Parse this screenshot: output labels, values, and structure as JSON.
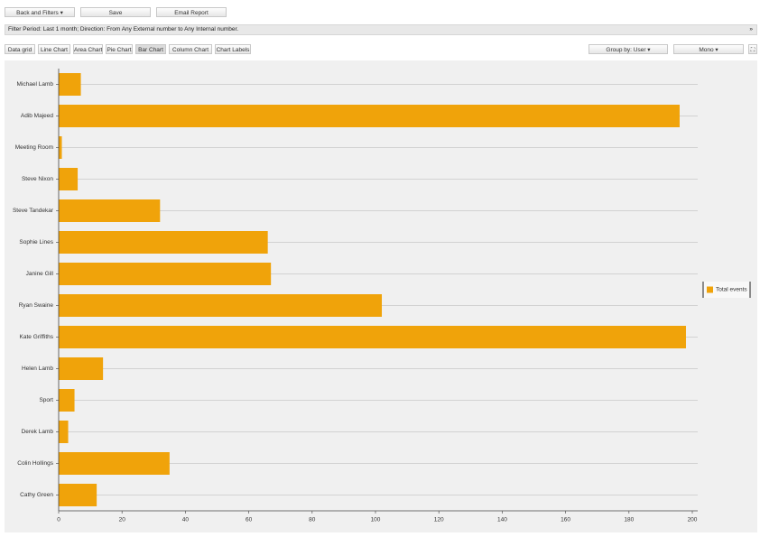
{
  "toolbar": {
    "buttons": [
      "Back and Filters",
      "Save",
      "Email Report"
    ]
  },
  "filter": {
    "text": "Filter Period: Last 1 month; Direction: From Any External number to Any Internal number.",
    "close": "»"
  },
  "chart_buttons": [
    "Data grid",
    "Line Chart",
    "Area Chart",
    "Pie Chart",
    "Bar Chart",
    "Column Chart",
    "Chart Labels"
  ],
  "group_by": "Group by: User",
  "mode": "Mono",
  "chart_data": {
    "type": "bar",
    "orientation": "horizontal",
    "categories": [
      "Michael Lamb",
      "Adib Majeed",
      "Meeting Room",
      "Steve Nixon",
      "Steve Tandekar",
      "Sophie Lines",
      "Janine Gill",
      "Ryan Swaine",
      "Kate Griffiths",
      "Helen Lamb",
      "Sport",
      "Derek Lamb",
      "Colin Hollings",
      "Cathy Green"
    ],
    "series": [
      {
        "name": "Total events",
        "color": "#f0a30a",
        "values": [
          7,
          196,
          1,
          6,
          32,
          66,
          67,
          102,
          198,
          14,
          5,
          3,
          35,
          12
        ]
      }
    ],
    "xlim": [
      0,
      200
    ],
    "xticks": [
      0,
      20,
      40,
      60,
      80,
      100,
      120,
      140,
      160,
      180,
      200
    ],
    "grid": true,
    "legend": "right"
  }
}
